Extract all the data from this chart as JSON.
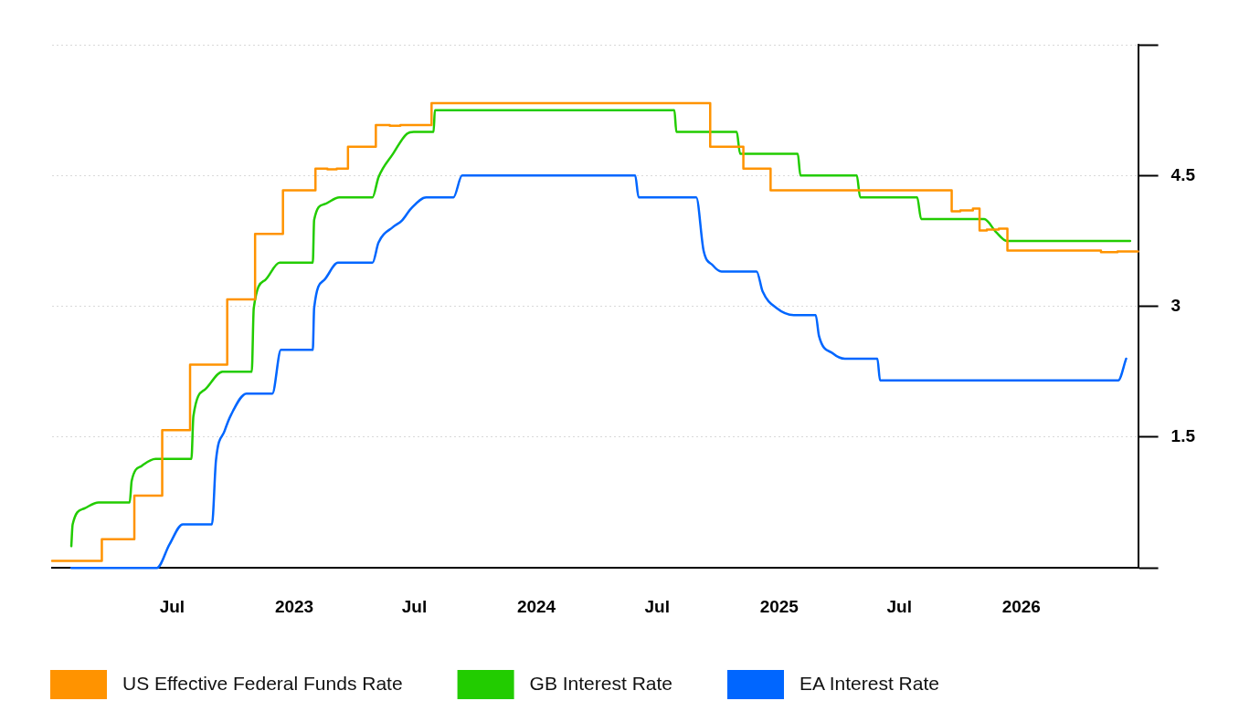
{
  "chart_data": {
    "type": "line",
    "series": [
      {
        "name": "US Effective Federal Funds Rate",
        "type": "step",
        "color": "#ff9300",
        "x": [
          "2022-01-01",
          "2022-03-17",
          "2022-05-05",
          "2022-06-16",
          "2022-07-28",
          "2022-09-22",
          "2022-11-03",
          "2022-12-15",
          "2023-02-02",
          "2023-02-20",
          "2023-03-06",
          "2023-03-23",
          "2023-05-04",
          "2023-05-25",
          "2023-06-10",
          "2023-07-27",
          "2024-09-19",
          "2024-11-08",
          "2024-12-19",
          "2025-09-18",
          "2025-10-01",
          "2025-10-20",
          "2025-10-30",
          "2025-11-10",
          "2025-11-28",
          "2025-12-11",
          "2026-05-01",
          "2026-05-26",
          "2026-06-26"
        ],
        "values": [
          0.08,
          0.33,
          0.83,
          1.58,
          2.33,
          3.08,
          3.83,
          4.33,
          4.58,
          4.57,
          4.58,
          4.83,
          5.08,
          5.07,
          5.08,
          5.33,
          4.83,
          4.58,
          4.33,
          4.09,
          4.1,
          4.12,
          3.87,
          3.88,
          3.89,
          3.64,
          3.62,
          3.63,
          3.63
        ]
      },
      {
        "name": "GB Interest Rate",
        "type": "line",
        "color": "#22cc00",
        "x": [
          "2022-01-30",
          "2022-02-01",
          "2022-02-18",
          "2022-03-12",
          "2022-04-28",
          "2022-05-01",
          "2022-05-16",
          "2022-06-06",
          "2022-07-30",
          "2022-08-02",
          "2022-08-20",
          "2022-09-15",
          "2022-10-29",
          "2022-11-01",
          "2022-11-18",
          "2022-12-10",
          "2023-01-29",
          "2023-01-31",
          "2023-02-15",
          "2023-03-10",
          "2023-04-29",
          "2023-05-08",
          "2023-05-30",
          "2023-06-20",
          "2023-06-30",
          "2023-07-30",
          "2023-08-01",
          "2024-07-27",
          "2024-07-30",
          "2024-10-29",
          "2024-11-03",
          "2025-01-29",
          "2025-02-02",
          "2025-04-28",
          "2025-05-03",
          "2025-07-28",
          "2025-08-03",
          "2025-11-06",
          "2025-11-24",
          "2025-12-10",
          "2026-06-14"
        ],
        "values": [
          0.25,
          0.5,
          0.68,
          0.75,
          0.75,
          1.0,
          1.17,
          1.25,
          1.25,
          1.74,
          2.05,
          2.25,
          2.25,
          2.98,
          3.3,
          3.5,
          3.5,
          3.99,
          4.17,
          4.25,
          4.25,
          4.48,
          4.75,
          4.98,
          5.0,
          5.0,
          5.25,
          5.25,
          5.0,
          5.0,
          4.75,
          4.75,
          4.5,
          4.5,
          4.25,
          4.25,
          4.0,
          4.0,
          3.85,
          3.75,
          3.75
        ]
      },
      {
        "name": "EA Interest Rate",
        "type": "line",
        "color": "#0066ff",
        "x": [
          "2022-01-30",
          "2022-06-08",
          "2022-06-27",
          "2022-07-17",
          "2022-08-30",
          "2022-09-05",
          "2022-09-18",
          "2022-09-28",
          "2022-10-21",
          "2022-11-29",
          "2022-12-12",
          "2023-01-29",
          "2023-01-31",
          "2023-02-15",
          "2023-03-08",
          "2023-04-29",
          "2023-05-08",
          "2023-05-30",
          "2023-06-12",
          "2023-06-26",
          "2023-07-19",
          "2023-08-29",
          "2023-09-11",
          "2024-05-29",
          "2024-06-03",
          "2024-08-29",
          "2024-09-09",
          "2024-09-23",
          "2024-10-06",
          "2024-11-28",
          "2024-12-07",
          "2024-12-28",
          "2025-01-23",
          "2025-02-25",
          "2025-03-02",
          "2025-03-23",
          "2025-04-10",
          "2025-05-29",
          "2025-06-02",
          "2026-05-27",
          "2026-06-08"
        ],
        "values": [
          0,
          0,
          0.27,
          0.5,
          0.5,
          1.23,
          1.57,
          1.76,
          2.0,
          2.0,
          2.5,
          2.5,
          2.98,
          3.3,
          3.5,
          3.5,
          3.73,
          3.91,
          3.98,
          4.12,
          4.25,
          4.25,
          4.5,
          4.5,
          4.25,
          4.25,
          3.64,
          3.47,
          3.4,
          3.4,
          3.17,
          2.98,
          2.9,
          2.9,
          2.66,
          2.46,
          2.4,
          2.4,
          2.15,
          2.15,
          2.4
        ]
      }
    ],
    "xlim": [
      "2022-01-01",
      "2026-06-26"
    ],
    "xticks": [
      {
        "value": "2022-07",
        "label": "Jul"
      },
      "2023",
      {
        "value": "2023-07",
        "label": "Jul"
      },
      "2024",
      {
        "value": "2024-07",
        "label": "Jul"
      },
      "2025",
      {
        "value": "2025-07",
        "label": "Jul"
      },
      "2026"
    ],
    "ylim": [
      0,
      6
    ],
    "yticks": [
      {
        "value": 0,
        "label": null
      },
      1.5,
      3,
      4.5,
      {
        "value": 6,
        "label": null
      }
    ],
    "grid": "y",
    "legend": "bottom left"
  }
}
